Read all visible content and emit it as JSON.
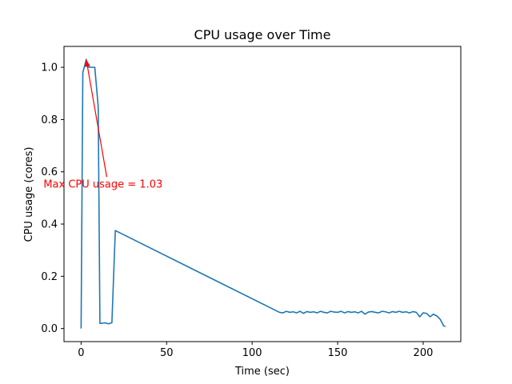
{
  "chart_data": {
    "type": "line",
    "title": "CPU usage over Time",
    "xlabel": "Time (sec)",
    "ylabel": "CPU usage (cores)",
    "xlim": [
      -10,
      222
    ],
    "ylim": [
      -0.05,
      1.08
    ],
    "xticks": [
      0,
      50,
      100,
      150,
      200
    ],
    "yticks": [
      0.0,
      0.2,
      0.4,
      0.6,
      0.8,
      1.0
    ],
    "xtick_labels": [
      "0",
      "50",
      "100",
      "150",
      "200"
    ],
    "ytick_labels": [
      "0.0",
      "0.2",
      "0.4",
      "0.6",
      "0.8",
      "1.0"
    ],
    "grid": false,
    "series_color": "#1f77b4",
    "annotation": {
      "text": "Max CPU usage = 1.03",
      "color": "#ff0000",
      "point": [
        3,
        1.03
      ],
      "text_anchor_point": [
        15,
        0.58
      ],
      "text_position": [
        -22,
        0.54
      ]
    },
    "series": [
      {
        "x": [
          0,
          1,
          3,
          4,
          8,
          10,
          11,
          12,
          14,
          16,
          18,
          20,
          116,
          118,
          120,
          122,
          124,
          126,
          128,
          130,
          132,
          134,
          136,
          138,
          140,
          142,
          144,
          146,
          148,
          150,
          152,
          154,
          156,
          158,
          160,
          162,
          164,
          166,
          168,
          170,
          172,
          174,
          176,
          178,
          180,
          182,
          184,
          186,
          188,
          190,
          192,
          194,
          196,
          198,
          200,
          202,
          204,
          206,
          208,
          210,
          212,
          213
        ],
        "y": [
          0.0,
          0.98,
          1.03,
          1.0,
          1.0,
          0.85,
          0.02,
          0.02,
          0.022,
          0.018,
          0.022,
          0.375,
          0.062,
          0.06,
          0.066,
          0.062,
          0.064,
          0.06,
          0.066,
          0.058,
          0.065,
          0.062,
          0.064,
          0.06,
          0.066,
          0.062,
          0.06,
          0.066,
          0.063,
          0.062,
          0.066,
          0.06,
          0.065,
          0.062,
          0.064,
          0.06,
          0.066,
          0.055,
          0.063,
          0.065,
          0.062,
          0.06,
          0.066,
          0.064,
          0.06,
          0.065,
          0.062,
          0.066,
          0.062,
          0.064,
          0.06,
          0.065,
          0.062,
          0.045,
          0.06,
          0.058,
          0.045,
          0.055,
          0.048,
          0.035,
          0.01,
          0.008
        ]
      }
    ]
  }
}
